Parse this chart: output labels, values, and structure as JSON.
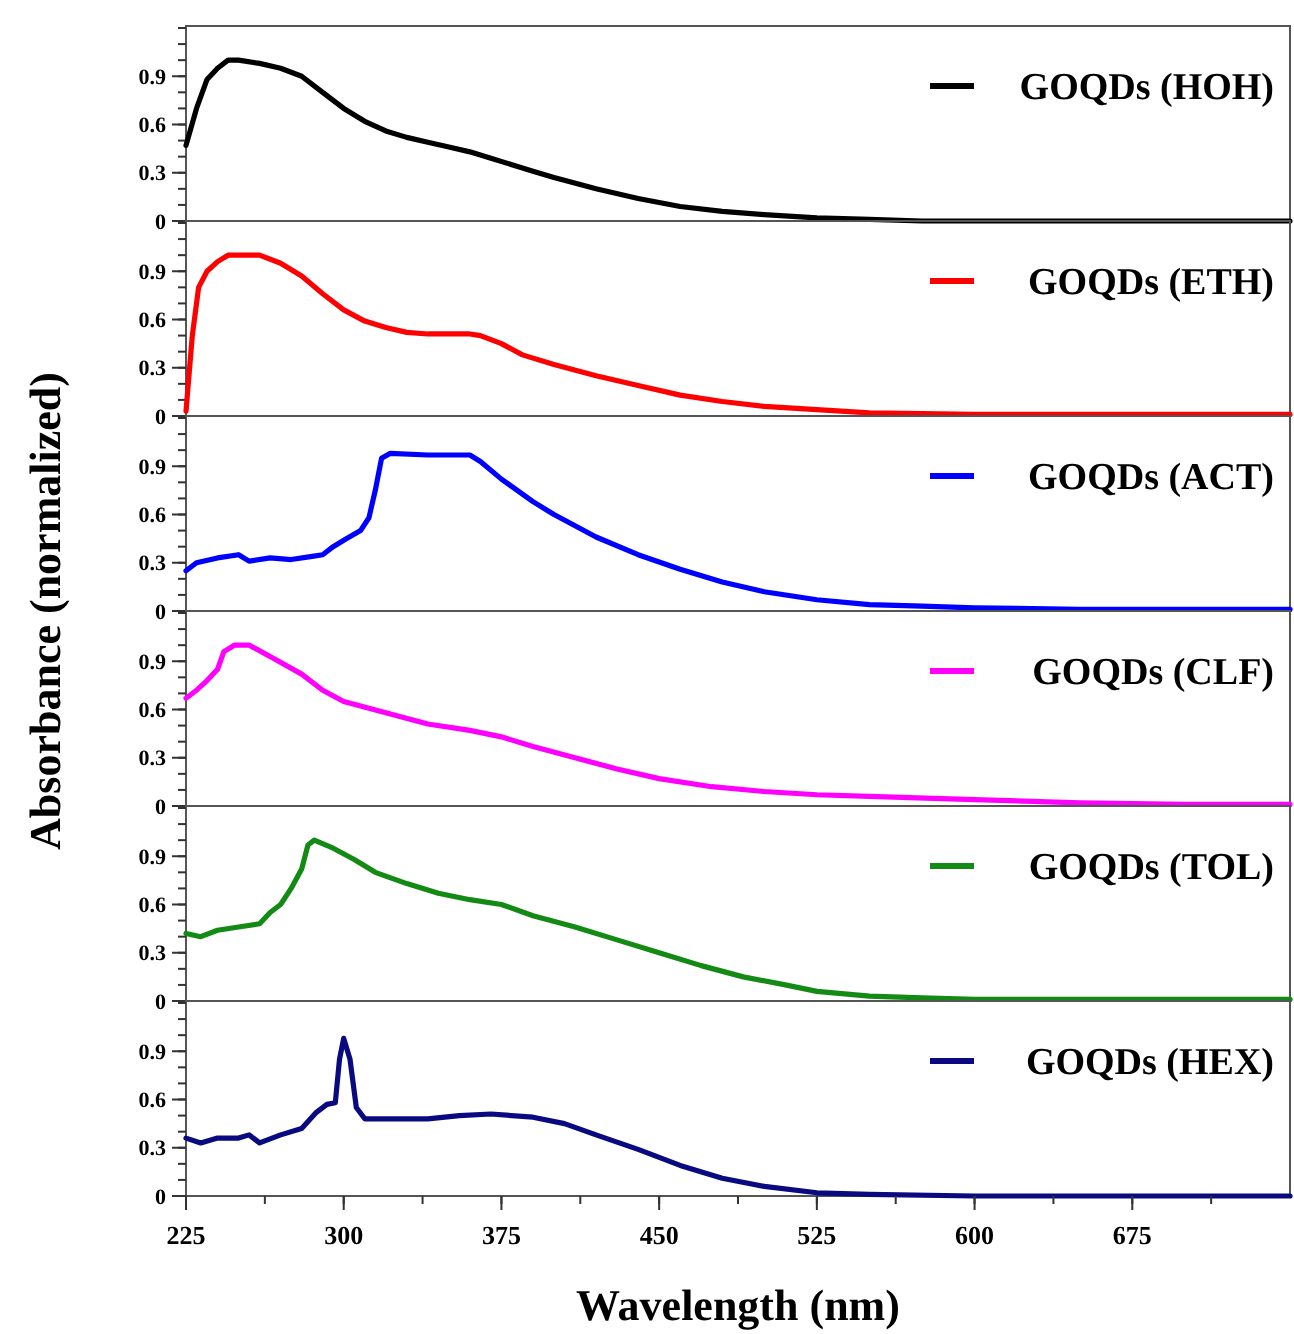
{
  "chart_data": [
    {
      "type": "line",
      "xlim": [
        225,
        750
      ],
      "ylim": [
        0,
        1.2
      ],
      "yticks": [
        0,
        0.3,
        0.6,
        0.9
      ],
      "tick_labels": "y",
      "legend": "top right",
      "series": [
        {
          "name": "GOQDs (HOH)",
          "color": "#000000",
          "x": [
            225,
            230,
            235,
            240,
            245,
            250,
            260,
            270,
            280,
            290,
            300,
            310,
            320,
            330,
            340,
            350,
            360,
            370,
            380,
            390,
            400,
            420,
            440,
            460,
            480,
            500,
            525,
            550,
            575,
            600,
            650,
            700,
            750
          ],
          "values": [
            0.47,
            0.7,
            0.88,
            0.95,
            1.0,
            1.0,
            0.98,
            0.95,
            0.9,
            0.8,
            0.7,
            0.62,
            0.56,
            0.52,
            0.49,
            0.46,
            0.43,
            0.39,
            0.35,
            0.31,
            0.27,
            0.2,
            0.14,
            0.09,
            0.06,
            0.04,
            0.02,
            0.01,
            0,
            0,
            0,
            0,
            0
          ]
        }
      ]
    },
    {
      "type": "line",
      "xlim": [
        225,
        750
      ],
      "ylim": [
        0,
        1.2
      ],
      "yticks": [
        0,
        0.3,
        0.6,
        0.9
      ],
      "tick_labels": "y",
      "legend": "top right",
      "series": [
        {
          "name": "GOQDs (ETH)",
          "color": "#ff0000",
          "x": [
            225,
            228,
            231,
            235,
            240,
            245,
            260,
            270,
            280,
            290,
            300,
            310,
            320,
            330,
            340,
            350,
            360,
            365,
            375,
            385,
            400,
            420,
            440,
            460,
            480,
            500,
            525,
            550,
            600,
            650,
            750
          ],
          "values": [
            0.03,
            0.5,
            0.8,
            0.9,
            0.96,
            1.0,
            1.0,
            0.95,
            0.87,
            0.76,
            0.66,
            0.59,
            0.55,
            0.52,
            0.51,
            0.51,
            0.51,
            0.5,
            0.45,
            0.38,
            0.32,
            0.25,
            0.19,
            0.13,
            0.09,
            0.06,
            0.04,
            0.02,
            0.01,
            0.01,
            0.01
          ]
        }
      ]
    },
    {
      "type": "line",
      "xlim": [
        225,
        750
      ],
      "ylim": [
        0,
        1.2
      ],
      "yticks": [
        0,
        0.3,
        0.6,
        0.9
      ],
      "tick_labels": "y",
      "legend": "top right",
      "series": [
        {
          "name": "GOQDs (ACT)",
          "color": "#0000ff",
          "x": [
            225,
            230,
            240,
            250,
            255,
            265,
            275,
            285,
            290,
            295,
            300,
            308,
            312,
            315,
            318,
            322,
            340,
            360,
            365,
            375,
            390,
            400,
            420,
            440,
            460,
            480,
            500,
            525,
            550,
            575,
            600,
            650,
            750
          ],
          "values": [
            0.25,
            0.3,
            0.33,
            0.35,
            0.31,
            0.33,
            0.32,
            0.34,
            0.35,
            0.4,
            0.44,
            0.5,
            0.58,
            0.75,
            0.95,
            0.98,
            0.97,
            0.97,
            0.93,
            0.82,
            0.68,
            0.6,
            0.46,
            0.35,
            0.26,
            0.18,
            0.12,
            0.07,
            0.04,
            0.03,
            0.02,
            0.01,
            0.01
          ]
        }
      ]
    },
    {
      "type": "line",
      "xlim": [
        225,
        750
      ],
      "ylim": [
        0,
        1.2
      ],
      "yticks": [
        0,
        0.3,
        0.6,
        0.9
      ],
      "tick_labels": "y",
      "legend": "top right",
      "ylabel": "Absorbance (normalized)",
      "series": [
        {
          "name": "GOQDs (CLF)",
          "color": "#ff00ff",
          "x": [
            225,
            230,
            235,
            240,
            243,
            248,
            255,
            265,
            280,
            290,
            300,
            320,
            340,
            360,
            375,
            390,
            410,
            430,
            450,
            475,
            500,
            525,
            550,
            600,
            650,
            700,
            750
          ],
          "values": [
            0.67,
            0.72,
            0.78,
            0.85,
            0.96,
            1.0,
            1.0,
            0.93,
            0.82,
            0.72,
            0.65,
            0.58,
            0.51,
            0.47,
            0.43,
            0.37,
            0.3,
            0.23,
            0.17,
            0.12,
            0.09,
            0.07,
            0.06,
            0.04,
            0.02,
            0.01,
            0.01
          ]
        }
      ]
    },
    {
      "type": "line",
      "xlim": [
        225,
        750
      ],
      "ylim": [
        0,
        1.2
      ],
      "yticks": [
        0,
        0.3,
        0.6,
        0.9
      ],
      "tick_labels": "y",
      "legend": "top right",
      "series": [
        {
          "name": "GOQDs (TOL)",
          "color": "#138a13",
          "x": [
            225,
            232,
            240,
            250,
            260,
            265,
            270,
            275,
            280,
            283,
            286,
            295,
            305,
            315,
            330,
            345,
            360,
            375,
            390,
            410,
            430,
            450,
            470,
            490,
            510,
            525,
            550,
            575,
            600,
            650,
            750
          ],
          "values": [
            0.42,
            0.4,
            0.44,
            0.46,
            0.48,
            0.55,
            0.6,
            0.7,
            0.82,
            0.97,
            1.0,
            0.95,
            0.88,
            0.8,
            0.73,
            0.67,
            0.63,
            0.6,
            0.53,
            0.46,
            0.38,
            0.3,
            0.22,
            0.15,
            0.1,
            0.06,
            0.03,
            0.02,
            0.01,
            0.01,
            0.01
          ]
        }
      ]
    },
    {
      "type": "line",
      "xlim": [
        225,
        750
      ],
      "ylim": [
        0,
        1.2
      ],
      "yticks": [
        0,
        0.3,
        0.6,
        0.9
      ],
      "xticks": [
        225,
        300,
        375,
        450,
        525,
        600,
        675
      ],
      "xlabel": "Wavelength (nm)",
      "legend": "top right",
      "series": [
        {
          "name": "GOQDs (HEX)",
          "color": "#0a0a80",
          "x": [
            225,
            232,
            240,
            250,
            255,
            260,
            270,
            280,
            287,
            292,
            296,
            298,
            300,
            303,
            306,
            310,
            340,
            355,
            370,
            390,
            405,
            420,
            440,
            460,
            480,
            500,
            525,
            550,
            600,
            750
          ],
          "values": [
            0.36,
            0.33,
            0.36,
            0.36,
            0.38,
            0.33,
            0.38,
            0.42,
            0.52,
            0.57,
            0.58,
            0.85,
            0.98,
            0.85,
            0.55,
            0.48,
            0.48,
            0.5,
            0.51,
            0.49,
            0.45,
            0.38,
            0.29,
            0.19,
            0.11,
            0.06,
            0.02,
            0.01,
            0,
            0
          ]
        }
      ]
    }
  ]
}
